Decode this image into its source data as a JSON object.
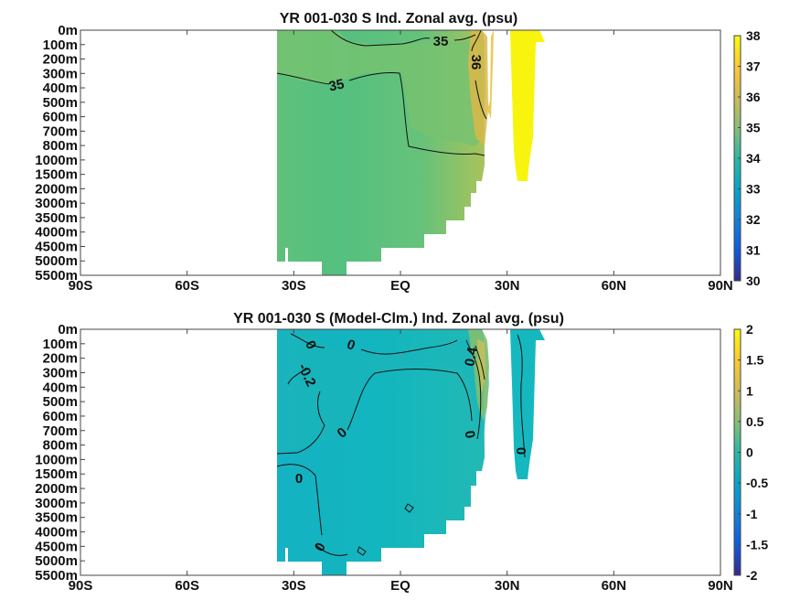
{
  "chart_data": [
    {
      "type": "heatmap",
      "title": "YR 001-030 S Ind. Zonal avg. (psu)",
      "x_ticks": [
        "90S",
        "60S",
        "30S",
        "EQ",
        "30N",
        "60N",
        "90N"
      ],
      "x_tick_values": [
        -90,
        -60,
        -30,
        0,
        30,
        60,
        90
      ],
      "xlim": [
        -90,
        90
      ],
      "y_ticks": [
        "0m",
        "100m",
        "200m",
        "300m",
        "400m",
        "500m",
        "600m",
        "700m",
        "800m",
        "1000m",
        "1500m",
        "2000m",
        "3000m",
        "3500m",
        "4000m",
        "4500m",
        "5000m",
        "5500m"
      ],
      "colorbar": {
        "ticks": [
          "38",
          "37",
          "36",
          "35",
          "34",
          "33",
          "32",
          "31",
          "30"
        ],
        "range": [
          30,
          38
        ]
      },
      "contour_labels": [
        "35",
        "35",
        "36"
      ],
      "colormap": "parula"
    },
    {
      "type": "heatmap",
      "title": "YR 001-030 S (Model-Clm.) Ind. Zonal avg. (psu)",
      "x_ticks": [
        "90S",
        "60S",
        "30S",
        "EQ",
        "30N",
        "60N",
        "90N"
      ],
      "x_tick_values": [
        -90,
        -60,
        -30,
        0,
        30,
        60,
        90
      ],
      "xlim": [
        -90,
        90
      ],
      "y_ticks": [
        "0m",
        "100m",
        "200m",
        "300m",
        "400m",
        "500m",
        "600m",
        "700m",
        "800m",
        "1000m",
        "1500m",
        "2000m",
        "3000m",
        "3500m",
        "4000m",
        "4500m",
        "5000m",
        "5500m"
      ],
      "colorbar": {
        "ticks": [
          "2",
          "1.5",
          "1",
          "0.5",
          "0",
          "-0.5",
          "-1",
          "-1.5",
          "-2"
        ],
        "range": [
          -2,
          2
        ]
      },
      "contour_labels": [
        "0",
        "0",
        "-0.2",
        "0",
        "0",
        "0",
        "0",
        "0",
        "0.4"
      ],
      "colormap": "parula"
    }
  ]
}
